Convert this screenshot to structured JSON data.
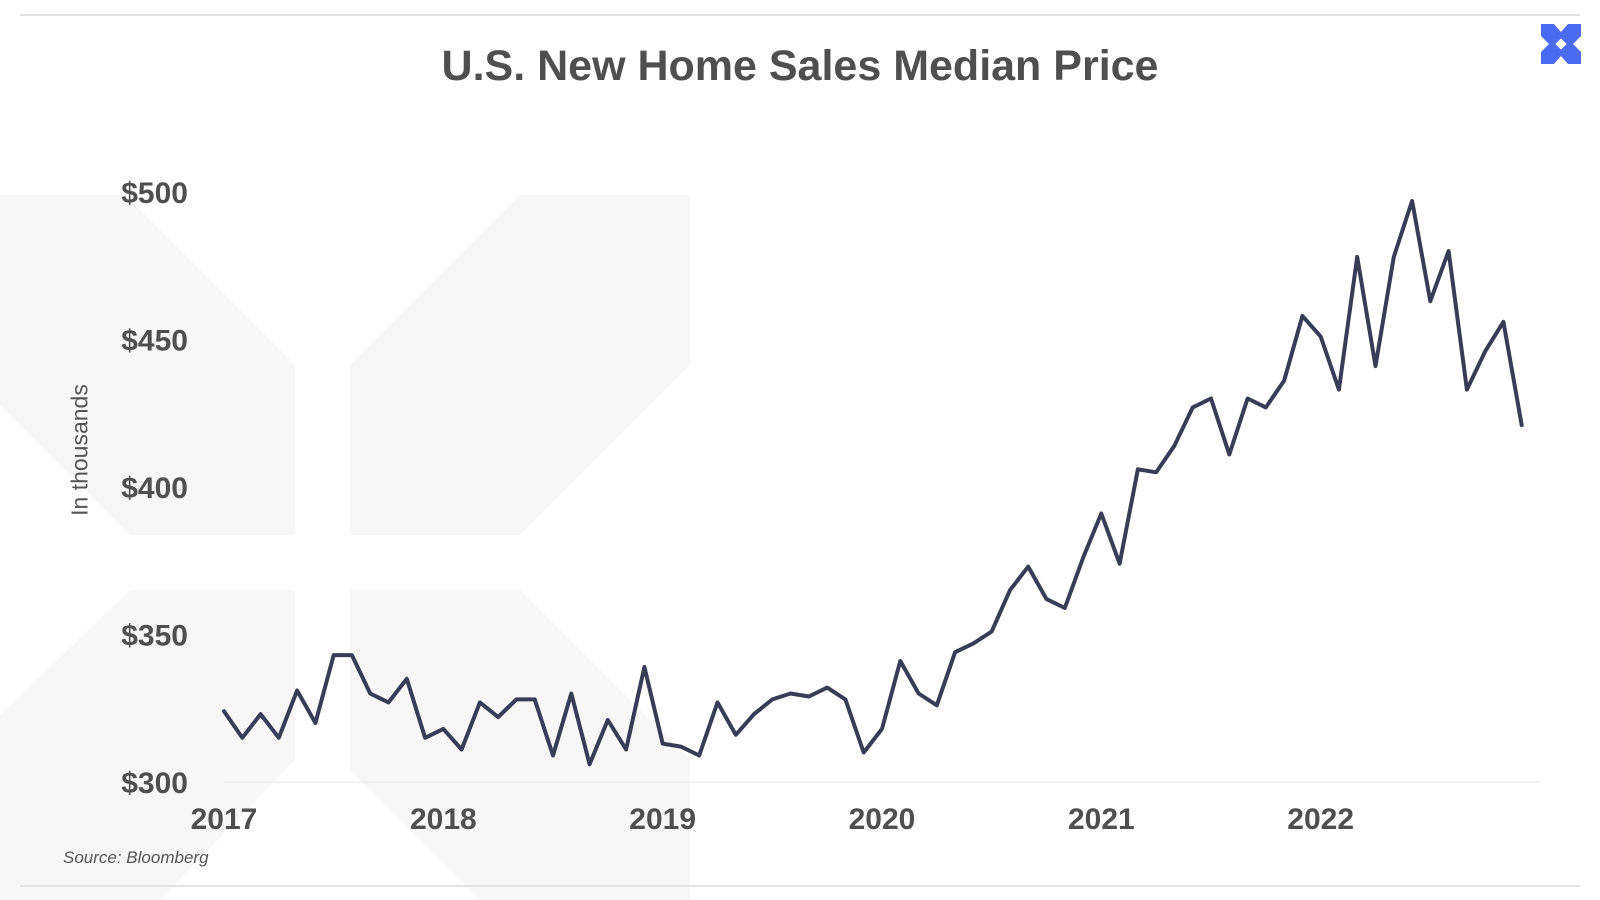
{
  "page": {
    "title": "U.S. New Home Sales Median Price",
    "source": "Source: Bloomberg",
    "logo_icon": "x-logo-icon",
    "accent_color": "#4b6bf5"
  },
  "chart_data": {
    "type": "line",
    "title": "U.S. New Home Sales Median Price",
    "xlabel": "",
    "ylabel": "In thousands",
    "ylim": [
      300,
      500
    ],
    "xlim": [
      2017,
      2023
    ],
    "yticks": [
      300,
      350,
      400,
      450,
      500
    ],
    "ytick_labels": [
      "$300",
      "$350",
      "$400",
      "$450",
      "$500"
    ],
    "xticks": [
      2017,
      2018,
      2019,
      2020,
      2021,
      2022
    ],
    "xtick_labels": [
      "2017",
      "2018",
      "2019",
      "2020",
      "2021",
      "2022"
    ],
    "grid": false,
    "line_color": "#383d57",
    "x": [
      "2017-01",
      "2017-02",
      "2017-03",
      "2017-04",
      "2017-05",
      "2017-06",
      "2017-07",
      "2017-08",
      "2017-09",
      "2017-10",
      "2017-11",
      "2017-12",
      "2018-01",
      "2018-02",
      "2018-03",
      "2018-04",
      "2018-05",
      "2018-06",
      "2018-07",
      "2018-08",
      "2018-09",
      "2018-10",
      "2018-11",
      "2018-12",
      "2019-01",
      "2019-02",
      "2019-03",
      "2019-04",
      "2019-05",
      "2019-06",
      "2019-07",
      "2019-08",
      "2019-09",
      "2019-10",
      "2019-11",
      "2019-12",
      "2020-01",
      "2020-02",
      "2020-03",
      "2020-04",
      "2020-05",
      "2020-06",
      "2020-07",
      "2020-08",
      "2020-09",
      "2020-10",
      "2020-11",
      "2020-12",
      "2021-01",
      "2021-02",
      "2021-03",
      "2021-04",
      "2021-05",
      "2021-06",
      "2021-07",
      "2021-08",
      "2021-09",
      "2021-10",
      "2021-11",
      "2021-12",
      "2022-01",
      "2022-02",
      "2022-03",
      "2022-04",
      "2022-05",
      "2022-06",
      "2022-07",
      "2022-08",
      "2022-09",
      "2022-10",
      "2022-11",
      "2022-12"
    ],
    "series": [
      {
        "values": [
          324,
          315,
          323,
          315,
          331,
          320,
          343,
          343,
          330,
          327,
          335,
          315,
          318,
          311,
          327,
          322,
          328,
          328,
          309,
          330,
          306,
          321,
          311,
          339,
          313,
          312,
          309,
          327,
          316,
          323,
          328,
          330,
          329,
          332,
          328,
          310,
          318,
          341,
          330,
          326,
          344,
          347,
          351,
          365,
          373,
          362,
          359,
          376,
          391,
          374,
          406,
          405,
          414,
          427,
          430,
          411,
          430,
          427,
          436,
          458,
          451,
          433,
          478,
          441,
          478,
          497,
          463,
          480,
          433,
          446,
          456,
          421
        ]
      }
    ]
  }
}
